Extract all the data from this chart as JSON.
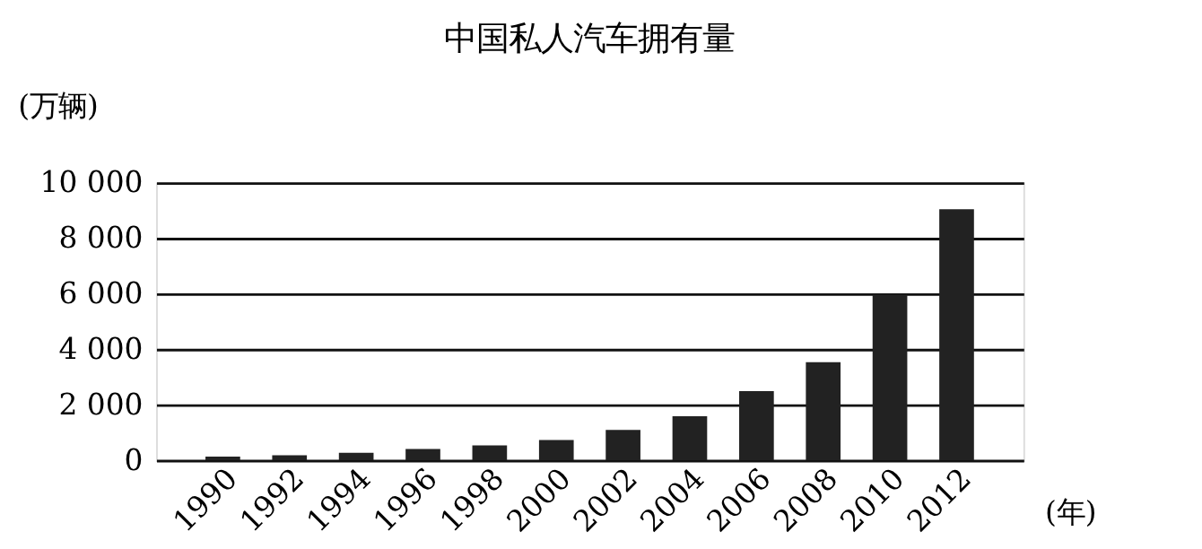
{
  "chart_data": {
    "type": "bar",
    "title": "中国私人汽车拥有量",
    "ylabel": "(万辆)",
    "xlabel": "(年)",
    "categories": [
      "1990",
      "1992",
      "1994",
      "1996",
      "1998",
      "2000",
      "2002",
      "2004",
      "2006",
      "2008",
      "2010",
      "2012"
    ],
    "values": [
      130,
      180,
      270,
      400,
      530,
      730,
      1090,
      1580,
      2490,
      3530,
      5960,
      9040
    ],
    "color": "#222222",
    "ylim": [
      0,
      10000
    ],
    "yticks": [
      0,
      {
        "value": 2000,
        "label": "2 000"
      },
      {
        "value": 4000,
        "label": "4 000"
      },
      {
        "value": 6000,
        "label": "6 000"
      },
      {
        "value": 8000,
        "label": "8 000"
      },
      {
        "value": 10000,
        "label": "10 000"
      }
    ],
    "grid": "y"
  }
}
